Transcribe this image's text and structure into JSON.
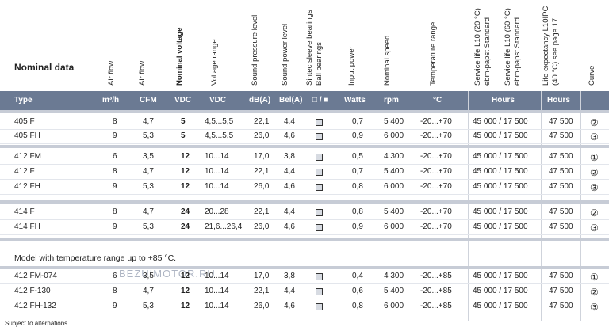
{
  "header": {
    "nominal_data": "Nominal data",
    "columns": [
      "Air flow",
      "Air flow",
      "Nominal voltage",
      "Voltage range",
      "Sound pressure level",
      "Sound power level",
      "Sintec sleeve bearings",
      "Ball bearings",
      "Input power",
      "Nominal speed",
      "Temperature range",
      "Service life L10 (20 °C)",
      "ebm-papst Standard",
      "Service life L10 (60 °C)",
      "ebm-papst Standard",
      "Life expectancy L10IPC",
      "(40 °C) see page 17",
      "Curve"
    ]
  },
  "units": {
    "type": "Type",
    "m3h": "m³/h",
    "cfm": "CFM",
    "vdc1": "VDC",
    "vdc2": "VDC",
    "dba": "dB(A)",
    "bel": "Bel(A)",
    "bearings": "□ / ■",
    "watts": "Watts",
    "rpm": "rpm",
    "degc": "°C",
    "hours1": "Hours",
    "hours2": "Hours",
    "curve": "Curve"
  },
  "rows": [
    [
      "405 F",
      "8",
      "4,7",
      "5",
      "4,5...5,5",
      "22,1",
      "4,4",
      "0,7",
      "5 400",
      "-20...+70",
      "45 000 / 17 500",
      "47 500",
      "②"
    ],
    [
      "405 FH",
      "9",
      "5,3",
      "5",
      "4,5...5,5",
      "26,0",
      "4,6",
      "0,9",
      "6 000",
      "-20...+70",
      "45 000 / 17 500",
      "47 500",
      "③"
    ],
    [
      "412 FM",
      "6",
      "3,5",
      "12",
      "10...14",
      "17,0",
      "3,8",
      "0,5",
      "4 300",
      "-20...+70",
      "45 000 / 17 500",
      "47 500",
      "①"
    ],
    [
      "412 F",
      "8",
      "4,7",
      "12",
      "10...14",
      "22,1",
      "4,4",
      "0,7",
      "5 400",
      "-20...+70",
      "45 000 / 17 500",
      "47 500",
      "②"
    ],
    [
      "412 FH",
      "9",
      "5,3",
      "12",
      "10...14",
      "26,0",
      "4,6",
      "0,8",
      "6 000",
      "-20...+70",
      "45 000 / 17 500",
      "47 500",
      "③"
    ],
    [
      "414 F",
      "8",
      "4,7",
      "24",
      "20...28",
      "22,1",
      "4,4",
      "0,8",
      "5 400",
      "-20...+70",
      "45 000 / 17 500",
      "47 500",
      "②"
    ],
    [
      "414 FH",
      "9",
      "5,3",
      "24",
      "21,6...26,4",
      "26,0",
      "4,6",
      "0,9",
      "6 000",
      "-20...+70",
      "45 000 / 17 500",
      "47 500",
      "③"
    ],
    [
      "412 FM-074",
      "6",
      "3,5",
      "12",
      "10...14",
      "17,0",
      "3,8",
      "0,4",
      "4 300",
      "-20...+85",
      "45 000 / 17 500",
      "47 500",
      "①"
    ],
    [
      "412 F-130",
      "8",
      "4,7",
      "12",
      "10...14",
      "22,1",
      "4,4",
      "0,6",
      "5 400",
      "-20...+85",
      "45 000 / 17 500",
      "47 500",
      "②"
    ],
    [
      "412 FH-132",
      "9",
      "5,3",
      "12",
      "10...14",
      "26,0",
      "4,6",
      "0,8",
      "6 000",
      "-20...+85",
      "45 000 / 17 500",
      "47 500",
      "③"
    ]
  ],
  "section_note": "Model with temperature range up to +85 °C.",
  "footer": "Subject to alternations",
  "watermark": "BEZUIMOTOR.RU"
}
